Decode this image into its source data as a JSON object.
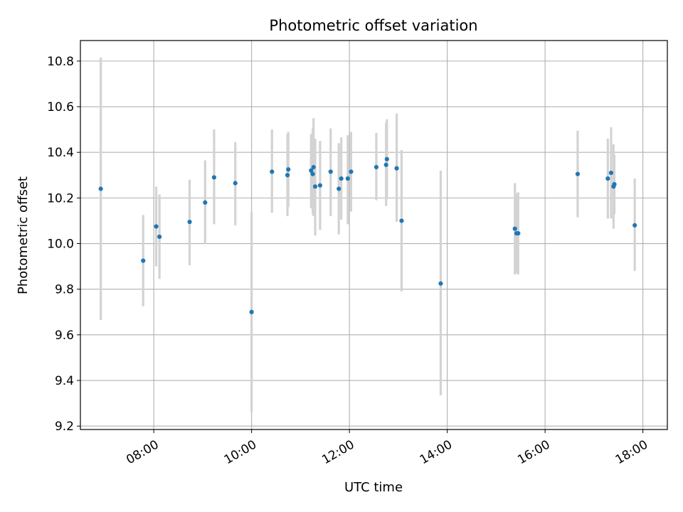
{
  "chart_data": {
    "type": "scatter",
    "title": "Photometric offset variation",
    "xlabel": "UTC time",
    "ylabel": "Photometric offset",
    "x_unit": "UTC time of day (HH:MM)",
    "xlim": [
      "06:30",
      "18:30"
    ],
    "ylim": [
      9.185,
      10.89
    ],
    "xticks": [
      "08:00",
      "10:00",
      "12:00",
      "14:00",
      "16:00",
      "18:00"
    ],
    "yticks": [
      "9.2",
      "9.4",
      "9.6",
      "9.8",
      "10.0",
      "10.2",
      "10.4",
      "10.6",
      "10.8"
    ],
    "grid": true,
    "legend": "none",
    "colors": {
      "point": "#1f77b4",
      "errorbar": "#d3d3d3",
      "grid": "#b0b0b0"
    },
    "series": [
      {
        "points": [
          {
            "x": "06:55",
            "y": 10.24,
            "ylo": 9.665,
            "yhi": 10.815
          },
          {
            "x": "07:47",
            "y": 9.925,
            "ylo": 9.725,
            "yhi": 10.125
          },
          {
            "x": "08:03",
            "y": 10.075,
            "ylo": 9.9,
            "yhi": 10.25
          },
          {
            "x": "08:07",
            "y": 10.03,
            "ylo": 9.845,
            "yhi": 10.215
          },
          {
            "x": "08:44",
            "y": 10.095,
            "ylo": 9.905,
            "yhi": 10.28
          },
          {
            "x": "09:03",
            "y": 10.18,
            "ylo": 10.0,
            "yhi": 10.365
          },
          {
            "x": "09:14",
            "y": 10.29,
            "ylo": 10.085,
            "yhi": 10.5
          },
          {
            "x": "09:40",
            "y": 10.265,
            "ylo": 10.08,
            "yhi": 10.445
          },
          {
            "x": "10:00",
            "y": 9.7,
            "ylo": 9.26,
            "yhi": 10.14
          },
          {
            "x": "10:25",
            "y": 10.315,
            "ylo": 10.135,
            "yhi": 10.5
          },
          {
            "x": "10:44",
            "y": 10.3,
            "ylo": 10.12,
            "yhi": 10.48
          },
          {
            "x": "10:45",
            "y": 10.325,
            "ylo": 10.16,
            "yhi": 10.49
          },
          {
            "x": "11:13",
            "y": 10.32,
            "ylo": 10.155,
            "yhi": 10.48
          },
          {
            "x": "11:15",
            "y": 10.305,
            "ylo": 10.13,
            "yhi": 10.505
          },
          {
            "x": "11:16",
            "y": 10.335,
            "ylo": 10.12,
            "yhi": 10.55
          },
          {
            "x": "11:18",
            "y": 10.25,
            "ylo": 10.035,
            "yhi": 10.46
          },
          {
            "x": "11:24",
            "y": 10.255,
            "ylo": 10.06,
            "yhi": 10.45
          },
          {
            "x": "11:37",
            "y": 10.315,
            "ylo": 10.12,
            "yhi": 10.505
          },
          {
            "x": "11:47",
            "y": 10.24,
            "ylo": 10.04,
            "yhi": 10.44
          },
          {
            "x": "11:50",
            "y": 10.285,
            "ylo": 10.105,
            "yhi": 10.465
          },
          {
            "x": "11:58",
            "y": 10.285,
            "ylo": 10.085,
            "yhi": 10.475
          },
          {
            "x": "12:02",
            "y": 10.315,
            "ylo": 10.14,
            "yhi": 10.49
          },
          {
            "x": "12:33",
            "y": 10.335,
            "ylo": 10.19,
            "yhi": 10.485
          },
          {
            "x": "12:45",
            "y": 10.345,
            "ylo": 10.165,
            "yhi": 10.53
          },
          {
            "x": "12:46",
            "y": 10.37,
            "ylo": 10.195,
            "yhi": 10.545
          },
          {
            "x": "12:58",
            "y": 10.33,
            "ylo": 10.095,
            "yhi": 10.57
          },
          {
            "x": "13:04",
            "y": 10.1,
            "ylo": 9.79,
            "yhi": 10.41
          },
          {
            "x": "13:52",
            "y": 9.825,
            "ylo": 9.335,
            "yhi": 10.32
          },
          {
            "x": "15:23",
            "y": 10.065,
            "ylo": 9.865,
            "yhi": 10.265
          },
          {
            "x": "15:25",
            "y": 10.045,
            "ylo": 9.87,
            "yhi": 10.22
          },
          {
            "x": "15:27",
            "y": 10.045,
            "ylo": 9.865,
            "yhi": 10.225
          },
          {
            "x": "16:40",
            "y": 10.305,
            "ylo": 10.115,
            "yhi": 10.495
          },
          {
            "x": "17:17",
            "y": 10.285,
            "ylo": 10.11,
            "yhi": 10.46
          },
          {
            "x": "17:21",
            "y": 10.31,
            "ylo": 10.11,
            "yhi": 10.51
          },
          {
            "x": "17:24",
            "y": 10.25,
            "ylo": 10.065,
            "yhi": 10.435
          },
          {
            "x": "17:25",
            "y": 10.26,
            "ylo": 10.13,
            "yhi": 10.39
          },
          {
            "x": "17:50",
            "y": 10.08,
            "ylo": 9.88,
            "yhi": 10.285
          }
        ]
      }
    ]
  }
}
